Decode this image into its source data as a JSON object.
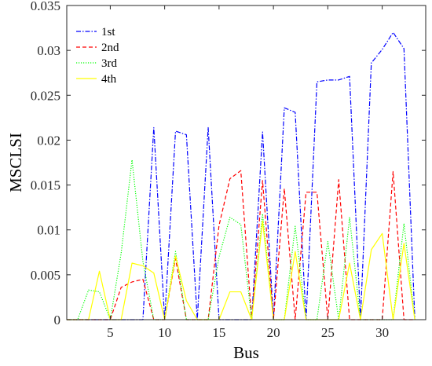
{
  "chart_data": {
    "type": "line",
    "title": "",
    "xlabel": "Bus",
    "ylabel": "MSCLSI",
    "xlim": [
      1,
      34
    ],
    "ylim": [
      0,
      0.035
    ],
    "xticks": [
      5,
      10,
      15,
      20,
      25,
      30
    ],
    "yticks": [
      0,
      0.005,
      0.01,
      0.015,
      0.02,
      0.025,
      0.03,
      0.035
    ],
    "ytick_labels": [
      "0",
      "0.005",
      "0.01",
      "0.015",
      "0.02",
      "0.025",
      "0.03",
      "0.035"
    ],
    "grid": false,
    "legend_position": "top-left",
    "x": [
      1,
      2,
      3,
      4,
      5,
      6,
      7,
      8,
      9,
      10,
      11,
      12,
      13,
      14,
      15,
      16,
      17,
      18,
      19,
      20,
      21,
      22,
      23,
      24,
      25,
      26,
      27,
      28,
      29,
      30,
      31,
      32,
      33
    ],
    "series": [
      {
        "name": "1st",
        "color": "#0000ff",
        "dash": "dashdot",
        "values": [
          0,
          0,
          0,
          0,
          0,
          0,
          0,
          0,
          0.0214,
          0,
          0.021,
          0.0206,
          0,
          0.0214,
          0,
          0,
          0,
          0,
          0.0209,
          0,
          0.0236,
          0.0231,
          0,
          0.0265,
          0.0267,
          0.0267,
          0.0271,
          0,
          0.0286,
          0.0301,
          0.032,
          0.0302,
          0
        ]
      },
      {
        "name": "2nd",
        "color": "#ff0000",
        "dash": "dashed",
        "values": [
          0,
          0,
          0,
          0,
          0,
          0.0036,
          0.0042,
          0.0045,
          0,
          0,
          0.0068,
          0,
          0,
          0,
          0.0105,
          0.0157,
          0.0166,
          0,
          0.0155,
          0,
          0.0146,
          0,
          0.0142,
          0.0142,
          0,
          0.0156,
          0,
          0,
          0,
          0,
          0.0165,
          0,
          0
        ]
      },
      {
        "name": "3rd",
        "color": "#00ff00",
        "dash": "dotted",
        "values": [
          0,
          0,
          0.0033,
          0.0031,
          0,
          0.0074,
          0.0178,
          0.0065,
          0,
          0,
          0.0076,
          0,
          0,
          0,
          0.007,
          0.0114,
          0.0106,
          0,
          0.0118,
          0,
          0,
          0.0104,
          0,
          0,
          0.0087,
          0,
          0.0114,
          0,
          0,
          0,
          0,
          0.0107,
          0
        ]
      },
      {
        "name": "4th",
        "color": "#ffff00",
        "dash": "solid",
        "values": [
          0,
          0,
          0,
          0.0054,
          0,
          0,
          0.0063,
          0.006,
          0.0052,
          0,
          0.0071,
          0.0021,
          0,
          0,
          0,
          0.0031,
          0.0031,
          0,
          0.011,
          0,
          0,
          0.0076,
          0,
          0,
          0,
          0,
          0.0063,
          0,
          0.0078,
          0.0096,
          0,
          0.0085,
          0
        ]
      }
    ]
  }
}
